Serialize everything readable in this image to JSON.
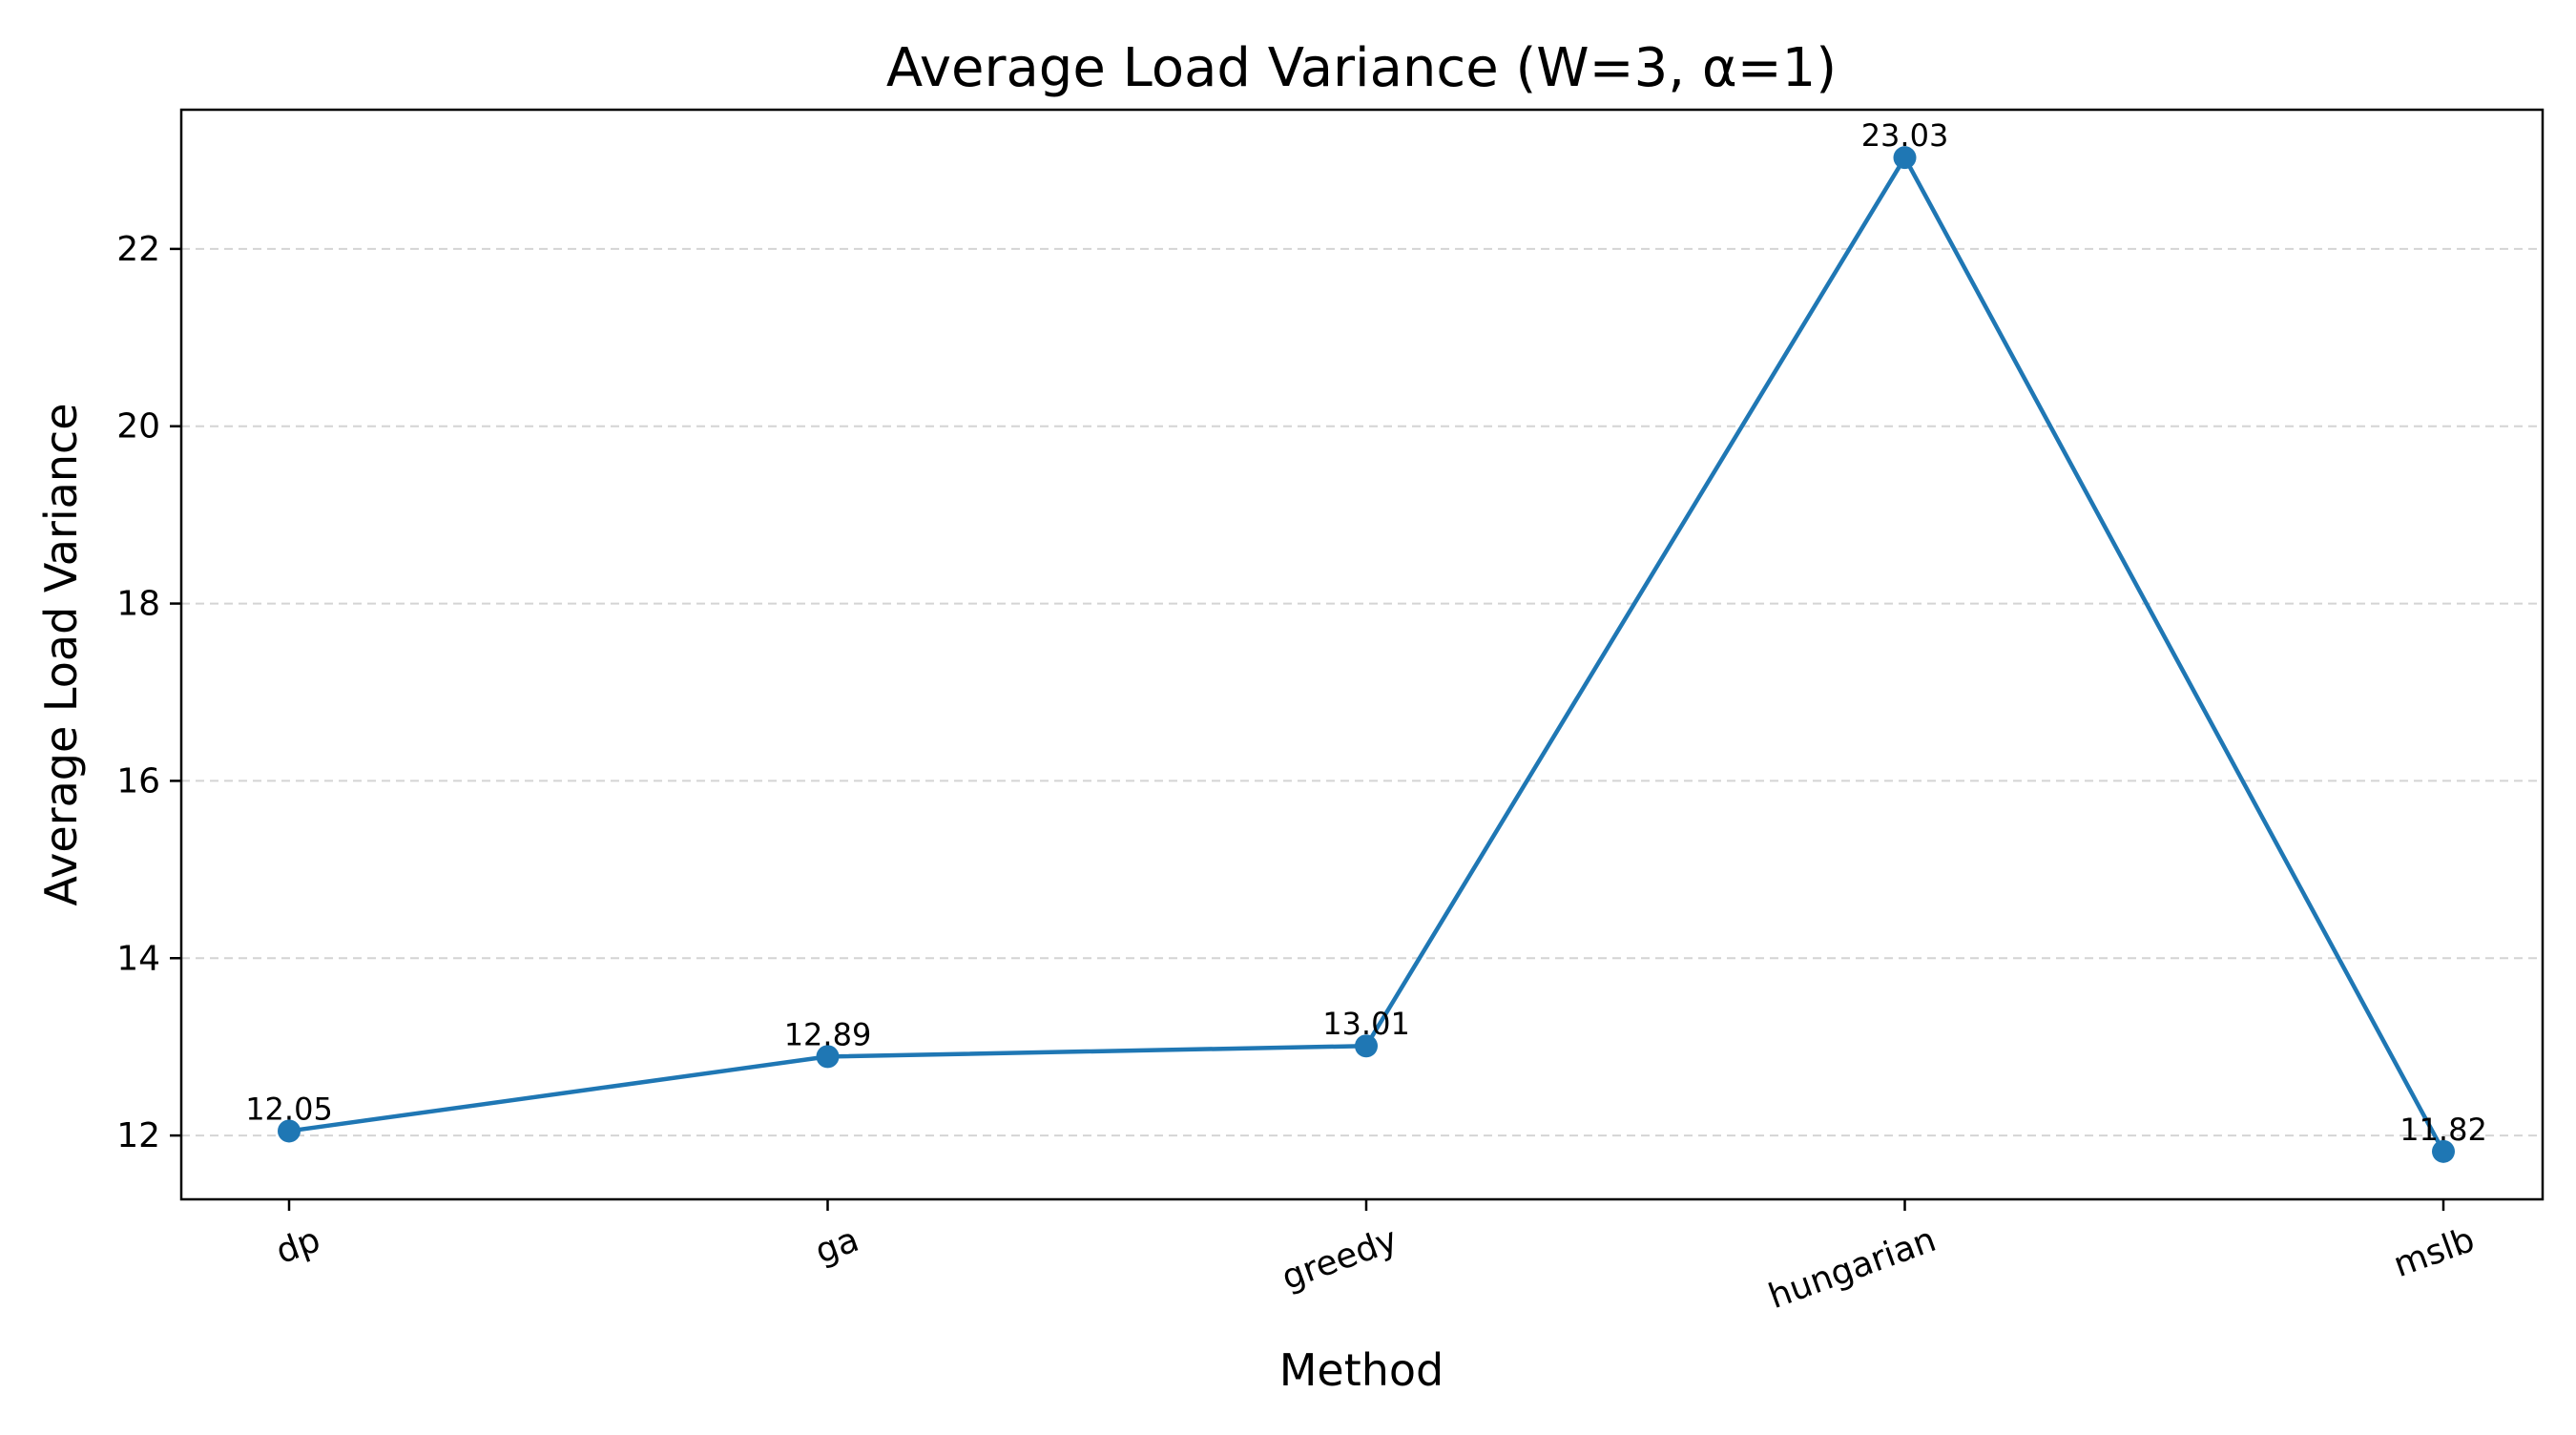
{
  "chart_data": {
    "type": "line",
    "title": "Average Load Variance (W=3, α=1)",
    "xlabel": "Method",
    "ylabel": "Average Load Variance",
    "categories": [
      "dp",
      "ga",
      "greedy",
      "hungarian",
      "mslb"
    ],
    "series": [
      {
        "values": [
          12.05,
          12.89,
          13.01,
          23.03,
          11.82
        ],
        "color": "#1f77b4",
        "marker": "circle"
      }
    ],
    "data_labels": [
      "12.05",
      "12.89",
      "13.01",
      "23.03",
      "11.82"
    ],
    "yticks": [
      12,
      14,
      16,
      18,
      20,
      22
    ],
    "ylim": [
      11.28,
      23.57
    ],
    "grid": "y-dashed",
    "xtick_rotation": 20,
    "legend": "none"
  }
}
